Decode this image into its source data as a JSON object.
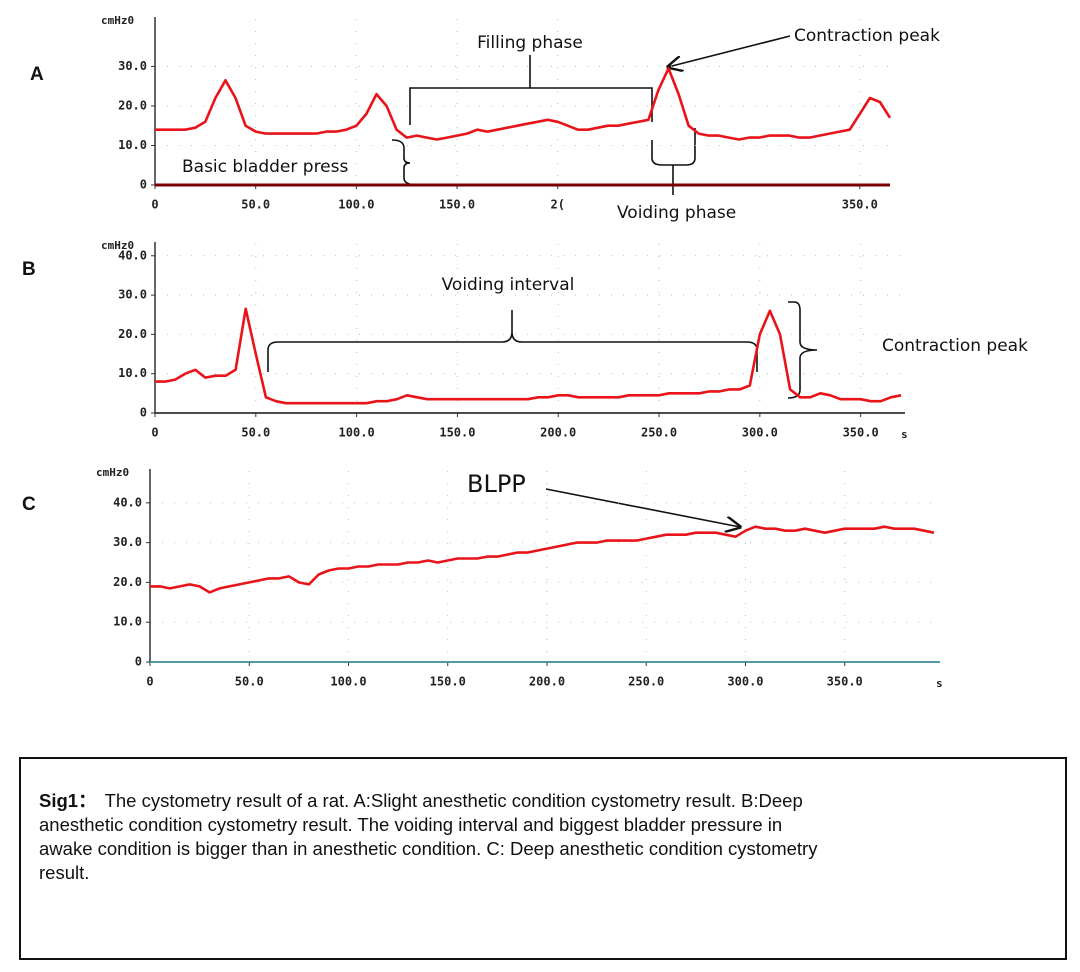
{
  "chart_data": [
    {
      "type": "line",
      "label": "A",
      "y_label": "cmHz0",
      "annotations": [
        "Filling phase",
        "Contraction peak",
        "Basic bladder press",
        "Voiding phase"
      ],
      "xlim": [
        0,
        365
      ],
      "ylim": [
        0,
        42
      ],
      "grid": true,
      "xticks": [
        0,
        {
          "value": 50,
          "label": "50.0"
        },
        {
          "value": 100,
          "label": "100.0"
        },
        {
          "value": 150,
          "label": "150.0"
        },
        {
          "value": 200,
          "label": "2("
        },
        {
          "value": 350,
          "label": "350.0"
        }
      ],
      "yticks": [
        0,
        {
          "value": 10,
          "label": "10.0"
        },
        {
          "value": 20,
          "label": "20.0"
        },
        {
          "value": 30,
          "label": "30.0"
        }
      ],
      "x": [
        0,
        5,
        10,
        15,
        20,
        25,
        30,
        35,
        40,
        45,
        50,
        55,
        60,
        65,
        70,
        75,
        80,
        85,
        90,
        95,
        100,
        105,
        110,
        115,
        120,
        125,
        130,
        135,
        140,
        145,
        150,
        155,
        160,
        165,
        170,
        175,
        180,
        185,
        190,
        195,
        200,
        205,
        210,
        215,
        220,
        225,
        230,
        235,
        240,
        245,
        250,
        255,
        260,
        265,
        270,
        275,
        280,
        285,
        290,
        295,
        300,
        305,
        310,
        315,
        320,
        325,
        330,
        335,
        340,
        345,
        350,
        355,
        360,
        365
      ],
      "series": [
        {
          "color": "#e8141a",
          "values": [
            14,
            14,
            14,
            14,
            14.5,
            16,
            22,
            26.5,
            22,
            15,
            13.5,
            13,
            13,
            13,
            13,
            13,
            13,
            13.5,
            13.5,
            14,
            15,
            18,
            23,
            20,
            14,
            12,
            12.5,
            12,
            11.5,
            12,
            12.5,
            13,
            14,
            13.5,
            14,
            14.5,
            15,
            15.5,
            16,
            16.5,
            16,
            15,
            14,
            14,
            14.5,
            15,
            15,
            15.5,
            16,
            16.5,
            24,
            29.5,
            23,
            15,
            13,
            12.5,
            12.5,
            12,
            11.5,
            12,
            12,
            12.5,
            12.5,
            12.5,
            12,
            12,
            12.5,
            13,
            13.5,
            14,
            18,
            22,
            21,
            17
          ]
        }
      ]
    },
    {
      "type": "line",
      "label": "B",
      "y_label": "cmHz0",
      "x_label": "s",
      "annotations": [
        "Voiding interval",
        "Contraction peak"
      ],
      "xlim": [
        0,
        372
      ],
      "ylim": [
        0,
        43
      ],
      "grid": true,
      "xticks": [
        0,
        {
          "value": 50,
          "label": "50.0"
        },
        {
          "value": 100,
          "label": "100.0"
        },
        {
          "value": 150,
          "label": "150.0"
        },
        {
          "value": 200,
          "label": "200.0"
        },
        {
          "value": 250,
          "label": "250.0"
        },
        {
          "value": 300,
          "label": "300.0"
        },
        {
          "value": 350,
          "label": "350.0"
        }
      ],
      "yticks": [
        0,
        {
          "value": 10,
          "label": "10.0"
        },
        {
          "value": 20,
          "label": "20.0"
        },
        {
          "value": 30,
          "label": "30.0"
        },
        {
          "value": 40,
          "label": "40.0"
        }
      ],
      "x": [
        0,
        5,
        10,
        15,
        20,
        25,
        30,
        35,
        40,
        45,
        50,
        55,
        60,
        65,
        70,
        75,
        80,
        85,
        90,
        95,
        100,
        105,
        110,
        115,
        120,
        125,
        130,
        135,
        140,
        145,
        150,
        155,
        160,
        165,
        170,
        175,
        180,
        185,
        190,
        195,
        200,
        205,
        210,
        215,
        220,
        225,
        230,
        235,
        240,
        245,
        250,
        255,
        260,
        265,
        270,
        275,
        280,
        285,
        290,
        295,
        300,
        305,
        310,
        315,
        320,
        325,
        330,
        335,
        340,
        345,
        350,
        355,
        360,
        365,
        370
      ],
      "series": [
        {
          "color": "#e8141a",
          "values": [
            8,
            8,
            8.5,
            10,
            11,
            9,
            9.5,
            9.5,
            11,
            26.5,
            15,
            4,
            3,
            2.5,
            2.5,
            2.5,
            2.5,
            2.5,
            2.5,
            2.5,
            2.5,
            2.5,
            3,
            3,
            3.5,
            4.5,
            4,
            3.5,
            3.5,
            3.5,
            3.5,
            3.5,
            3.5,
            3.5,
            3.5,
            3.5,
            3.5,
            3.5,
            4,
            4,
            4.5,
            4.5,
            4,
            4,
            4,
            4,
            4,
            4.5,
            4.5,
            4.5,
            4.5,
            5,
            5,
            5,
            5,
            5.5,
            5.5,
            6,
            6,
            7,
            20,
            26,
            20,
            6,
            4,
            4,
            5,
            4.5,
            3.5,
            3.5,
            3.5,
            3,
            3,
            4,
            4.5
          ]
        }
      ]
    },
    {
      "type": "line",
      "label": "C",
      "y_label": "cmHz0",
      "x_label": "s",
      "annotations": [
        "BLPP"
      ],
      "xlim": [
        0,
        398
      ],
      "ylim": [
        0,
        48
      ],
      "grid": true,
      "xticks": [
        0,
        {
          "value": 50,
          "label": "50.0"
        },
        {
          "value": 100,
          "label": "100.0"
        },
        {
          "value": 150,
          "label": "150.0"
        },
        {
          "value": 200,
          "label": "200.0"
        },
        {
          "value": 250,
          "label": "250.0"
        },
        {
          "value": 300,
          "label": "300.0"
        },
        {
          "value": 350,
          "label": "350.0"
        }
      ],
      "yticks": [
        0,
        {
          "value": 10,
          "label": "10.0"
        },
        {
          "value": 20,
          "label": "20.0"
        },
        {
          "value": 30,
          "label": "30.0"
        },
        {
          "value": 40,
          "label": "40.0"
        }
      ],
      "x": [
        0,
        5,
        10,
        15,
        20,
        25,
        30,
        35,
        40,
        45,
        50,
        55,
        60,
        65,
        70,
        75,
        80,
        85,
        90,
        95,
        100,
        105,
        110,
        115,
        120,
        125,
        130,
        135,
        140,
        145,
        150,
        155,
        160,
        165,
        170,
        175,
        180,
        185,
        190,
        195,
        200,
        205,
        210,
        215,
        220,
        225,
        230,
        235,
        240,
        245,
        250,
        255,
        260,
        265,
        270,
        275,
        280,
        285,
        290,
        295,
        300,
        305,
        310,
        315,
        320,
        325,
        330,
        335,
        340,
        345,
        350,
        355,
        360,
        365,
        370,
        375,
        380,
        385,
        390,
        395
      ],
      "series": [
        {
          "color": "#e8141a",
          "values": [
            19,
            19,
            18.5,
            19,
            19.5,
            19,
            17.5,
            18.5,
            19,
            19.5,
            20,
            20.5,
            21,
            21,
            21.5,
            20,
            19.5,
            22,
            23,
            23.5,
            23.5,
            24,
            24,
            24.5,
            24.5,
            24.5,
            25,
            25,
            25.5,
            25,
            25.5,
            26,
            26,
            26,
            26.5,
            26.5,
            27,
            27.5,
            27.5,
            28,
            28.5,
            29,
            29.5,
            30,
            30,
            30,
            30.5,
            30.5,
            30.5,
            30.5,
            31,
            31.5,
            32,
            32,
            32,
            32.5,
            32.5,
            32.5,
            32,
            31.5,
            33,
            34,
            33.5,
            33.5,
            33,
            33,
            33.5,
            33,
            32.5,
            33,
            33.5,
            33.5,
            33.5,
            33.5,
            34,
            33.5,
            33.5,
            33.5,
            33,
            32.5
          ]
        }
      ]
    }
  ],
  "caption": {
    "title": "Sig1：",
    "text": "The cystometry result of a rat. A:Slight anesthetic condition cystometry result. B:Deep anesthetic condition cystometry result. The voiding interval and biggest bladder pressure in awake condition is bigger than in anesthetic condition. C: Deep anesthetic condition cystometry result."
  }
}
